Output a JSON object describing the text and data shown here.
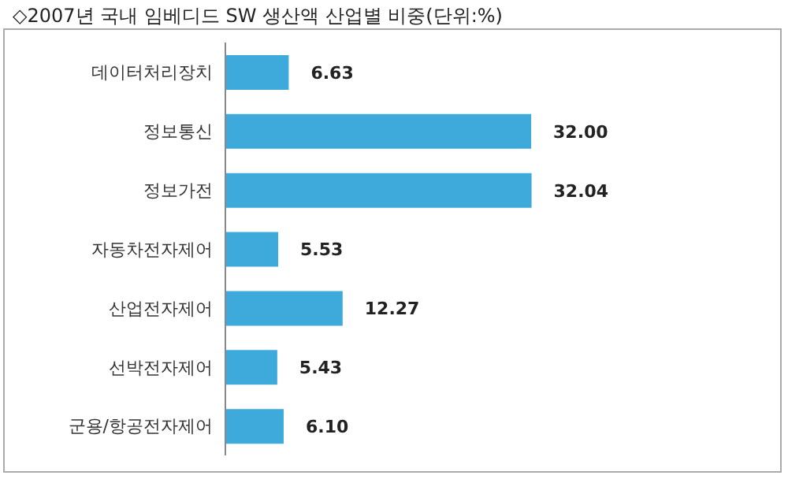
{
  "chart_data": {
    "type": "bar",
    "orientation": "horizontal",
    "title": "◇2007년 국내 임베디드 SW 생산액 산업별 비중(단위:%)",
    "categories": [
      "데이터처리장치",
      "정보통신",
      "정보가전",
      "자동차전자제어",
      "산업전자제어",
      "선박전자제어",
      "군용/항공전자제어"
    ],
    "values": [
      6.63,
      32.0,
      32.04,
      5.53,
      12.27,
      5.43,
      6.1
    ],
    "value_labels": [
      "6.63",
      "32.00",
      "32.04",
      "5.53",
      "12.27",
      "5.43",
      "6.10"
    ],
    "color": "#3eaadc",
    "grid": false
  }
}
